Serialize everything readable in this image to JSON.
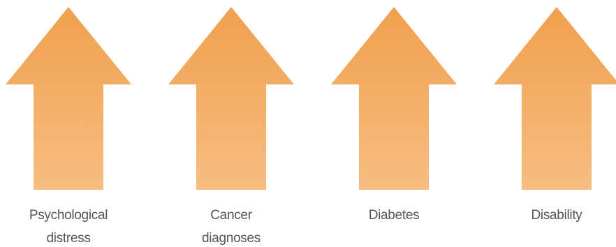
{
  "items": [
    {
      "label": [
        "Psychological",
        "distress"
      ]
    },
    {
      "label": [
        "Cancer",
        "diagnoses"
      ]
    },
    {
      "label": [
        "Diabetes"
      ]
    },
    {
      "label": [
        "Disability"
      ]
    }
  ]
}
